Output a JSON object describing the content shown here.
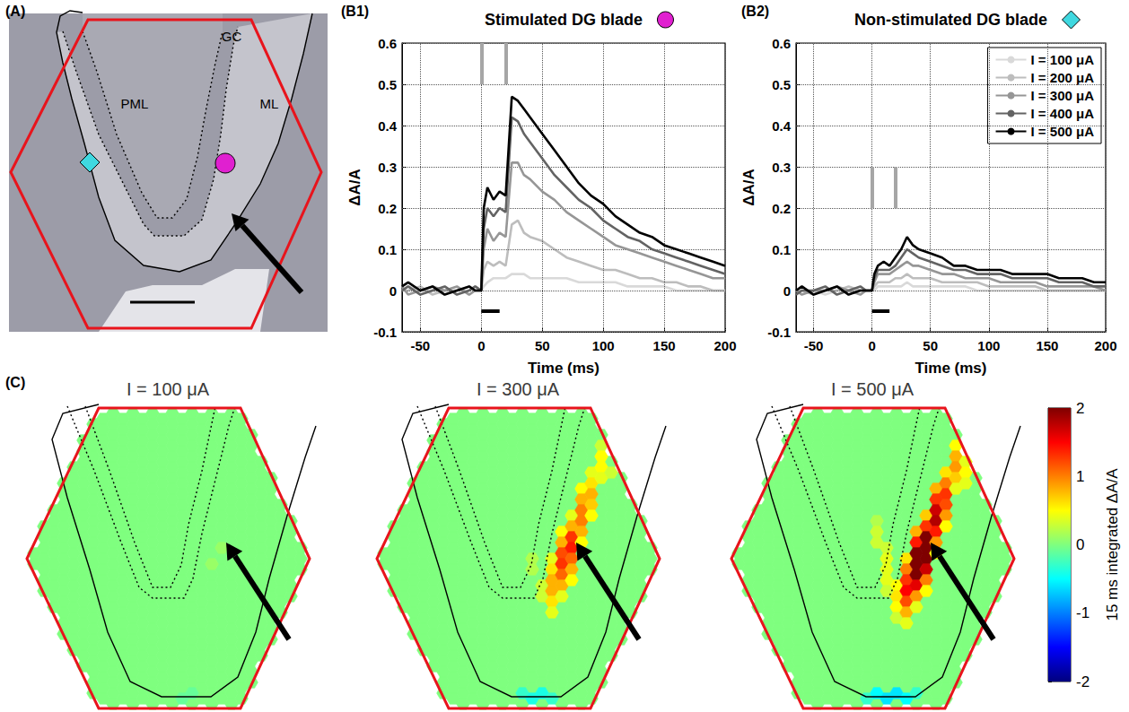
{
  "chart_data": [
    {
      "type": "line",
      "panel": "(B1)",
      "title": "Stimulated DG blade",
      "xlabel": "Time (ms)",
      "ylabel": "ΔA/A",
      "xlim": [
        -65,
        200
      ],
      "xticks": [
        -50,
        0,
        50,
        100,
        150,
        200
      ],
      "ylim": [
        -0.1,
        0.6
      ],
      "yticks": [
        -0.1,
        0,
        0.1,
        0.2,
        0.3,
        0.4,
        0.5,
        0.6
      ],
      "grid": true,
      "stimuli": {
        "x": [
          0,
          20
        ],
        "y": [
          0.5,
          0.6
        ]
      },
      "window": {
        "x": [
          0,
          15
        ],
        "y": -0.05
      },
      "x": [
        -65,
        -60,
        -50,
        -40,
        -30,
        -20,
        -10,
        -5,
        0,
        2,
        5,
        10,
        15,
        20,
        25,
        30,
        35,
        40,
        50,
        60,
        70,
        80,
        90,
        100,
        110,
        120,
        130,
        140,
        150,
        160,
        170,
        180,
        190,
        200
      ],
      "series": [
        {
          "name": "I = 100 μA",
          "color": "#d9d9d9",
          "values": [
            0.0,
            0.01,
            0.0,
            0.0,
            -0.01,
            0.0,
            0.0,
            0.01,
            0.0,
            0.01,
            0.02,
            0.03,
            0.03,
            0.03,
            0.04,
            0.04,
            0.04,
            0.03,
            0.03,
            0.03,
            0.03,
            0.02,
            0.02,
            0.02,
            0.02,
            0.01,
            0.01,
            0.01,
            0.01,
            0.0,
            0.0,
            0.0,
            0.0,
            0.0
          ]
        },
        {
          "name": "I = 200 μA",
          "color": "#bdbdbd",
          "values": [
            0.0,
            0.0,
            0.01,
            -0.01,
            0.0,
            0.0,
            0.01,
            0.0,
            0.0,
            0.05,
            0.07,
            0.06,
            0.07,
            0.06,
            0.16,
            0.17,
            0.14,
            0.13,
            0.12,
            0.1,
            0.08,
            0.07,
            0.06,
            0.05,
            0.05,
            0.04,
            0.03,
            0.03,
            0.02,
            0.02,
            0.01,
            0.01,
            0.0,
            0.0
          ]
        },
        {
          "name": "I = 300 μA",
          "color": "#969696",
          "values": [
            0.01,
            -0.01,
            0.0,
            0.01,
            0.0,
            0.01,
            -0.01,
            0.0,
            0.0,
            0.1,
            0.15,
            0.12,
            0.14,
            0.13,
            0.31,
            0.31,
            0.28,
            0.27,
            0.24,
            0.22,
            0.19,
            0.17,
            0.15,
            0.13,
            0.11,
            0.1,
            0.09,
            0.08,
            0.07,
            0.06,
            0.05,
            0.04,
            0.03,
            0.03
          ]
        },
        {
          "name": "I = 400 μA",
          "color": "#636363",
          "values": [
            0.0,
            0.01,
            -0.01,
            0.0,
            0.01,
            -0.01,
            0.0,
            0.01,
            0.0,
            0.15,
            0.2,
            0.18,
            0.2,
            0.19,
            0.42,
            0.41,
            0.38,
            0.36,
            0.32,
            0.28,
            0.25,
            0.22,
            0.2,
            0.17,
            0.15,
            0.13,
            0.12,
            0.1,
            0.09,
            0.08,
            0.07,
            0.06,
            0.05,
            0.04
          ]
        },
        {
          "name": "I = 500 μA",
          "color": "#000000",
          "values": [
            0.01,
            0.02,
            0.0,
            0.01,
            -0.01,
            0.0,
            0.01,
            0.0,
            0.0,
            0.2,
            0.25,
            0.22,
            0.24,
            0.23,
            0.47,
            0.46,
            0.44,
            0.42,
            0.38,
            0.34,
            0.3,
            0.26,
            0.23,
            0.21,
            0.18,
            0.16,
            0.14,
            0.13,
            0.11,
            0.1,
            0.09,
            0.08,
            0.07,
            0.06
          ]
        }
      ]
    },
    {
      "type": "line",
      "panel": "(B2)",
      "title": "Non-stimulated DG blade",
      "xlabel": "Time (ms)",
      "ylabel": "ΔA/A",
      "xlim": [
        -65,
        200
      ],
      "xticks": [
        -50,
        0,
        50,
        100,
        150,
        200
      ],
      "ylim": [
        -0.1,
        0.6
      ],
      "yticks": [
        -0.1,
        0,
        0.1,
        0.2,
        0.3,
        0.4,
        0.5,
        0.6
      ],
      "grid": true,
      "legend": "upper right",
      "stimuli": {
        "x": [
          0,
          20
        ],
        "y": [
          0.2,
          0.3
        ]
      },
      "window": {
        "x": [
          0,
          15
        ],
        "y": -0.05
      },
      "x": [
        -65,
        -60,
        -50,
        -40,
        -30,
        -20,
        -10,
        -5,
        0,
        2,
        5,
        10,
        15,
        20,
        25,
        30,
        35,
        40,
        50,
        60,
        70,
        80,
        90,
        100,
        110,
        120,
        130,
        140,
        150,
        160,
        170,
        180,
        190,
        200
      ],
      "series": [
        {
          "name": "I = 100 μA",
          "color": "#d9d9d9",
          "values": [
            0.0,
            0.0,
            0.0,
            -0.01,
            0.0,
            0.0,
            0.0,
            0.0,
            0.0,
            0.0,
            0.01,
            0.01,
            0.01,
            0.01,
            0.01,
            0.02,
            0.01,
            0.01,
            0.01,
            0.01,
            0.01,
            0.01,
            0.0,
            0.0,
            0.0,
            0.0,
            0.0,
            0.0,
            0.0,
            0.0,
            0.0,
            0.0,
            0.0,
            0.0
          ]
        },
        {
          "name": "I = 200 μA",
          "color": "#bdbdbd",
          "values": [
            0.0,
            0.0,
            -0.01,
            0.0,
            0.0,
            0.01,
            0.0,
            0.0,
            0.0,
            0.01,
            0.02,
            0.02,
            0.02,
            0.03,
            0.03,
            0.04,
            0.03,
            0.03,
            0.03,
            0.02,
            0.02,
            0.02,
            0.02,
            0.01,
            0.01,
            0.01,
            0.01,
            0.01,
            0.0,
            0.0,
            0.0,
            0.0,
            0.0,
            0.0
          ]
        },
        {
          "name": "I = 300 μA",
          "color": "#969696",
          "values": [
            0.0,
            -0.01,
            0.0,
            0.0,
            0.01,
            0.0,
            -0.01,
            0.0,
            0.0,
            0.02,
            0.04,
            0.04,
            0.04,
            0.05,
            0.06,
            0.07,
            0.06,
            0.06,
            0.05,
            0.04,
            0.04,
            0.03,
            0.03,
            0.03,
            0.02,
            0.02,
            0.02,
            0.02,
            0.01,
            0.01,
            0.01,
            0.01,
            0.01,
            0.0
          ]
        },
        {
          "name": "I = 400 μA",
          "color": "#636363",
          "values": [
            -0.01,
            0.0,
            0.0,
            0.01,
            -0.01,
            0.0,
            0.01,
            0.0,
            0.0,
            0.03,
            0.05,
            0.05,
            0.05,
            0.06,
            0.08,
            0.1,
            0.09,
            0.08,
            0.07,
            0.06,
            0.05,
            0.05,
            0.04,
            0.04,
            0.04,
            0.03,
            0.03,
            0.03,
            0.03,
            0.02,
            0.02,
            0.02,
            0.01,
            0.01
          ]
        },
        {
          "name": "I = 500 μA",
          "color": "#000000",
          "values": [
            0.0,
            0.01,
            -0.01,
            0.0,
            0.01,
            -0.01,
            0.0,
            0.0,
            0.0,
            0.04,
            0.06,
            0.07,
            0.06,
            0.08,
            0.1,
            0.13,
            0.11,
            0.1,
            0.09,
            0.08,
            0.06,
            0.06,
            0.05,
            0.05,
            0.05,
            0.04,
            0.04,
            0.04,
            0.04,
            0.03,
            0.03,
            0.03,
            0.02,
            0.02
          ]
        }
      ]
    }
  ],
  "panel_a": {
    "panel": "(A)",
    "labels": [
      "PML",
      "GC",
      "ML"
    ]
  },
  "panel_c": {
    "panel": "(C)",
    "background": 0,
    "colorbar": {
      "label": "15 ms integrated ΔA/A",
      "lim": [
        -2,
        2
      ],
      "ticks": [
        2,
        1,
        0,
        -1,
        -2
      ]
    },
    "maps": [
      {
        "title": "I = 100 μA",
        "cells": [
          [
            19,
            12,
            0.1
          ],
          [
            18,
            14,
            0.1
          ],
          [
            15,
            26,
            -0.1
          ],
          [
            16,
            26,
            -0.1
          ]
        ]
      },
      {
        "title": "I = 300 μA",
        "cells": [
          [
            16,
            16,
            0.3
          ],
          [
            16,
            17,
            0.3
          ],
          [
            17,
            13,
            0.4
          ],
          [
            17,
            14,
            0.6
          ],
          [
            17,
            15,
            0.8
          ],
          [
            17,
            16,
            0.8
          ],
          [
            17,
            17,
            0.6
          ],
          [
            17,
            18,
            0.4
          ],
          [
            18,
            11,
            0.5
          ],
          [
            18,
            12,
            0.8
          ],
          [
            18,
            13,
            1.2
          ],
          [
            18,
            14,
            1.3
          ],
          [
            18,
            15,
            1.1
          ],
          [
            18,
            16,
            0.8
          ],
          [
            18,
            17,
            0.4
          ],
          [
            19,
            9,
            0.4
          ],
          [
            19,
            10,
            0.8
          ],
          [
            19,
            11,
            1.3
          ],
          [
            19,
            12,
            1.4
          ],
          [
            19,
            13,
            1.1
          ],
          [
            19,
            14,
            0.8
          ],
          [
            19,
            15,
            0.5
          ],
          [
            20,
            7,
            0.5
          ],
          [
            20,
            8,
            0.8
          ],
          [
            20,
            9,
            1.0
          ],
          [
            20,
            10,
            1.0
          ],
          [
            20,
            11,
            0.8
          ],
          [
            20,
            12,
            0.5
          ],
          [
            21,
            5,
            0.4
          ],
          [
            21,
            6,
            0.6
          ],
          [
            21,
            7,
            0.8
          ],
          [
            21,
            8,
            0.7
          ],
          [
            21,
            9,
            0.5
          ],
          [
            22,
            3,
            0.3
          ],
          [
            22,
            4,
            0.5
          ],
          [
            22,
            5,
            0.5
          ],
          [
            22,
            6,
            0.4
          ],
          [
            23,
            5,
            0.3
          ],
          [
            15,
            13,
            0.2
          ],
          [
            15,
            14,
            0.2
          ],
          [
            14,
            26,
            -0.3
          ],
          [
            15,
            26,
            -0.4
          ],
          [
            16,
            26,
            -0.4
          ],
          [
            17,
            26,
            -0.3
          ]
        ]
      },
      {
        "title": "I = 500 μA",
        "cells": [
          [
            16,
            16,
            0.5
          ],
          [
            16,
            17,
            0.6
          ],
          [
            16,
            18,
            0.5
          ],
          [
            16,
            19,
            0.3
          ],
          [
            17,
            13,
            0.6
          ],
          [
            17,
            14,
            1.0
          ],
          [
            17,
            15,
            1.3
          ],
          [
            17,
            16,
            1.5
          ],
          [
            17,
            17,
            1.2
          ],
          [
            17,
            18,
            0.8
          ],
          [
            17,
            19,
            0.4
          ],
          [
            18,
            11,
            0.8
          ],
          [
            18,
            12,
            1.4
          ],
          [
            18,
            13,
            2.0
          ],
          [
            18,
            14,
            2.2
          ],
          [
            18,
            15,
            2.1
          ],
          [
            18,
            16,
            1.6
          ],
          [
            18,
            17,
            0.9
          ],
          [
            18,
            18,
            0.4
          ],
          [
            19,
            9,
            0.7
          ],
          [
            19,
            10,
            1.3
          ],
          [
            19,
            11,
            2.1
          ],
          [
            19,
            12,
            2.2
          ],
          [
            19,
            13,
            2.0
          ],
          [
            19,
            14,
            1.7
          ],
          [
            19,
            15,
            1.0
          ],
          [
            19,
            16,
            0.5
          ],
          [
            20,
            7,
            0.8
          ],
          [
            20,
            8,
            1.3
          ],
          [
            20,
            9,
            1.7
          ],
          [
            20,
            10,
            1.8
          ],
          [
            20,
            11,
            1.4
          ],
          [
            20,
            12,
            0.9
          ],
          [
            20,
            13,
            0.5
          ],
          [
            21,
            5,
            0.6
          ],
          [
            21,
            6,
            1.0
          ],
          [
            21,
            7,
            1.3
          ],
          [
            21,
            8,
            1.2
          ],
          [
            21,
            9,
            0.9
          ],
          [
            21,
            10,
            0.5
          ],
          [
            22,
            3,
            0.5
          ],
          [
            22,
            4,
            0.8
          ],
          [
            22,
            5,
            0.9
          ],
          [
            22,
            6,
            0.7
          ],
          [
            22,
            7,
            0.4
          ],
          [
            23,
            4,
            0.4
          ],
          [
            23,
            5,
            0.5
          ],
          [
            23,
            6,
            0.4
          ],
          [
            15,
            12,
            0.3
          ],
          [
            15,
            13,
            0.4
          ],
          [
            15,
            14,
            0.4
          ],
          [
            15,
            15,
            0.4
          ],
          [
            15,
            16,
            0.3
          ],
          [
            14,
            10,
            0.2
          ],
          [
            14,
            11,
            0.3
          ],
          [
            14,
            12,
            0.3
          ],
          [
            13,
            26,
            -0.3
          ],
          [
            14,
            26,
            -0.5
          ],
          [
            15,
            26,
            -0.6
          ],
          [
            16,
            26,
            -0.6
          ],
          [
            17,
            26,
            -0.5
          ],
          [
            18,
            26,
            -0.3
          ]
        ]
      }
    ]
  }
}
